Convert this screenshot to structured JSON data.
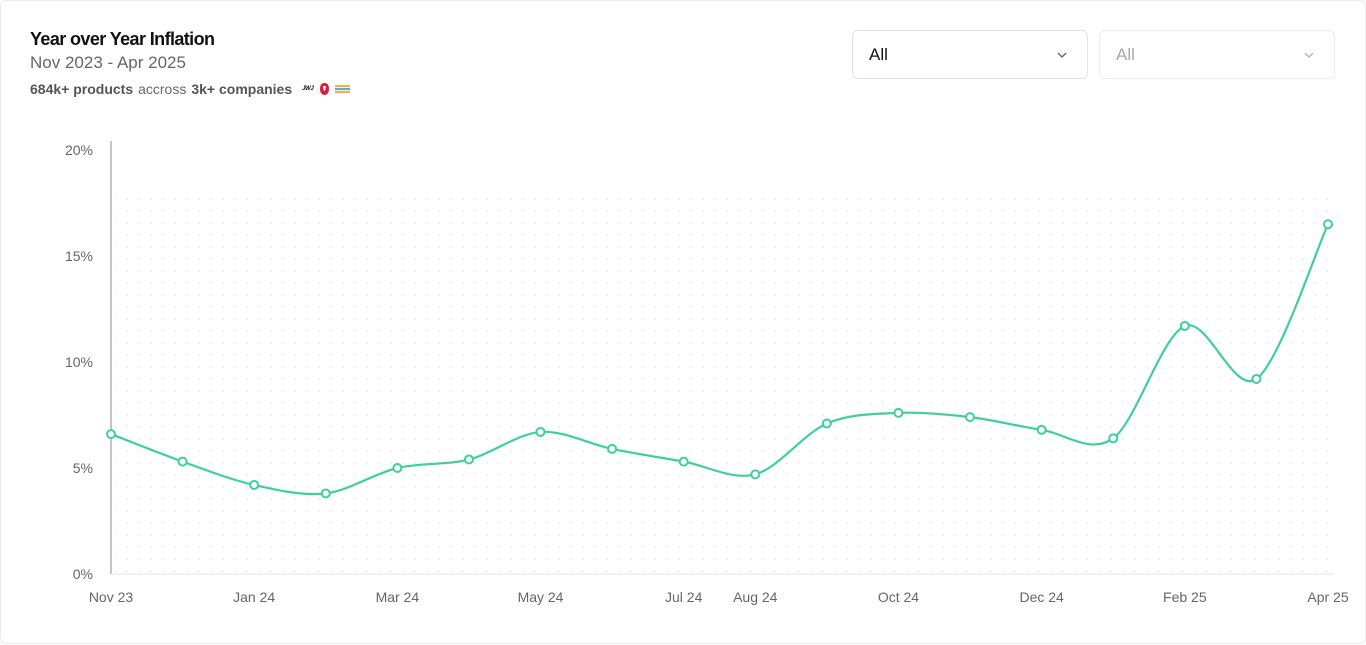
{
  "header": {
    "title": "Year over Year Inflation",
    "date_range": "Nov 2023 - Apr 2025",
    "products_count": "684k+ products",
    "across_word": "accross",
    "companies_count": "3k+ companies",
    "logo_text": "JWJ"
  },
  "filters": [
    {
      "selected": "All",
      "state": "active"
    },
    {
      "selected": "All",
      "state": "disabled"
    }
  ],
  "icons": {
    "dropdown": "chevron-down-icon",
    "logo_red": "red-brand-logo-icon",
    "logo_stripes": "striped-brand-logo-icon"
  },
  "colors": {
    "line": "#3dd09a",
    "axis": "#8a8a8a",
    "grid_dots": "#e6e6e6",
    "logo_red": "#d81e3a"
  },
  "chart_data": {
    "type": "line",
    "title": "Year over Year Inflation",
    "xlabel": "",
    "ylabel": "",
    "ylim": [
      0,
      20
    ],
    "y_ticks": [
      0,
      5,
      10,
      15,
      20
    ],
    "y_tick_labels": [
      "0%",
      "5%",
      "10%",
      "15%",
      "20%"
    ],
    "grid": "dotted",
    "categories": [
      "Nov 23",
      "Dec 23",
      "Jan 24",
      "Feb 24",
      "Mar 24",
      "Apr 24",
      "May 24",
      "Jun 24",
      "Jul 24",
      "Aug 24",
      "Sep 24",
      "Oct 24",
      "Nov 24",
      "Dec 24",
      "Jan 25",
      "Feb 25",
      "Mar 25",
      "Apr 25"
    ],
    "x_tick_labels": [
      {
        "index": 0,
        "label": "Nov 23"
      },
      {
        "index": 2,
        "label": "Jan 24"
      },
      {
        "index": 4,
        "label": "Mar 24"
      },
      {
        "index": 6,
        "label": "May 24"
      },
      {
        "index": 8,
        "label": "Jul 24"
      },
      {
        "index": 9,
        "label": "Aug 24"
      },
      {
        "index": 11,
        "label": "Oct 24"
      },
      {
        "index": 13,
        "label": "Dec 24"
      },
      {
        "index": 15,
        "label": "Feb 25"
      },
      {
        "index": 17,
        "label": "Apr 25"
      }
    ],
    "series": [
      {
        "values": [
          6.6,
          5.3,
          4.2,
          3.8,
          5.0,
          5.4,
          6.7,
          5.9,
          5.3,
          4.7,
          7.1,
          7.6,
          7.4,
          6.8,
          6.4,
          11.7,
          9.2,
          16.5
        ]
      }
    ]
  }
}
